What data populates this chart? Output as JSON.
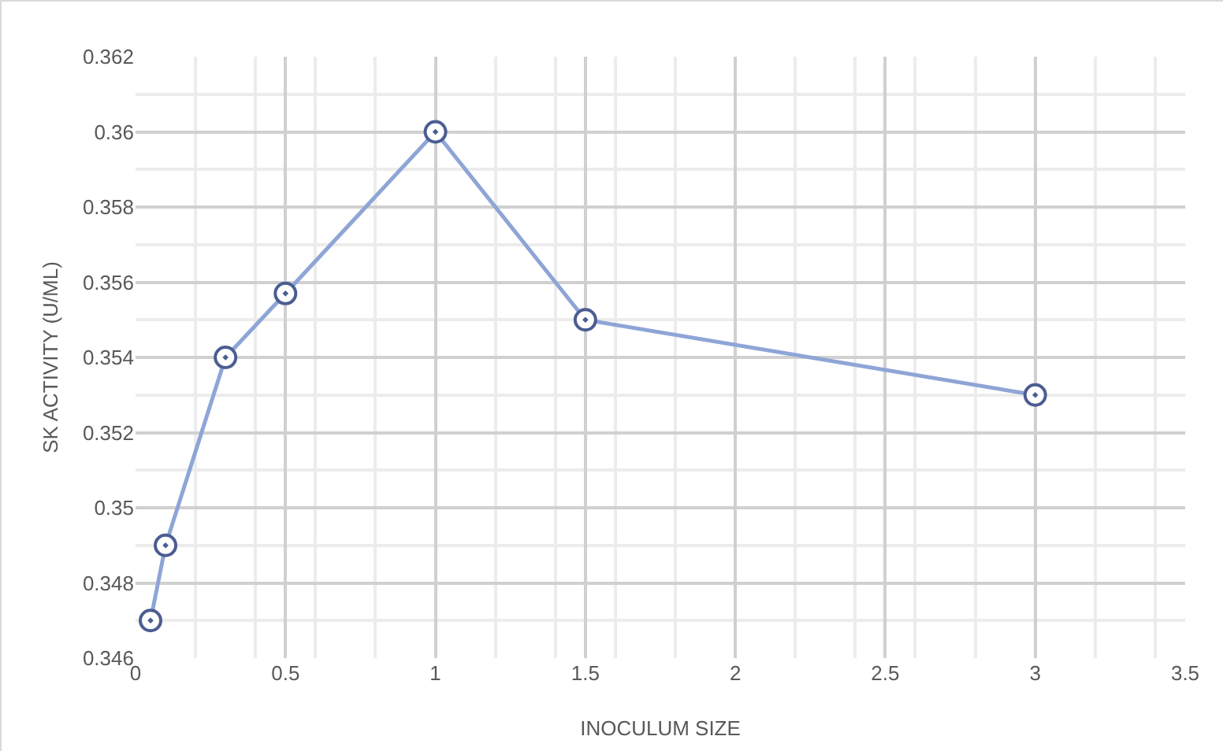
{
  "chart_data": {
    "type": "line",
    "xlabel": "INOCULUM SIZE",
    "ylabel": "SK ACTIVITY (U/ML)",
    "x": [
      0.05,
      0.1,
      0.3,
      0.5,
      1,
      1.5,
      3
    ],
    "series": [
      {
        "color": "#8ea5d6",
        "values": [
          0.347,
          0.349,
          0.354,
          0.3557,
          0.36,
          0.355,
          0.353
        ]
      }
    ],
    "xlim": [
      0,
      3.5
    ],
    "xticks": [
      0,
      0.5,
      1,
      1.5,
      2,
      2.5,
      3,
      3.5
    ],
    "ylim": [
      0.346,
      0.362
    ],
    "yticks": [
      0.346,
      0.348,
      0.35,
      0.352,
      0.354,
      0.356,
      0.358,
      0.36,
      0.362
    ],
    "grid": true,
    "marker": "circle",
    "line_style": "solid"
  }
}
